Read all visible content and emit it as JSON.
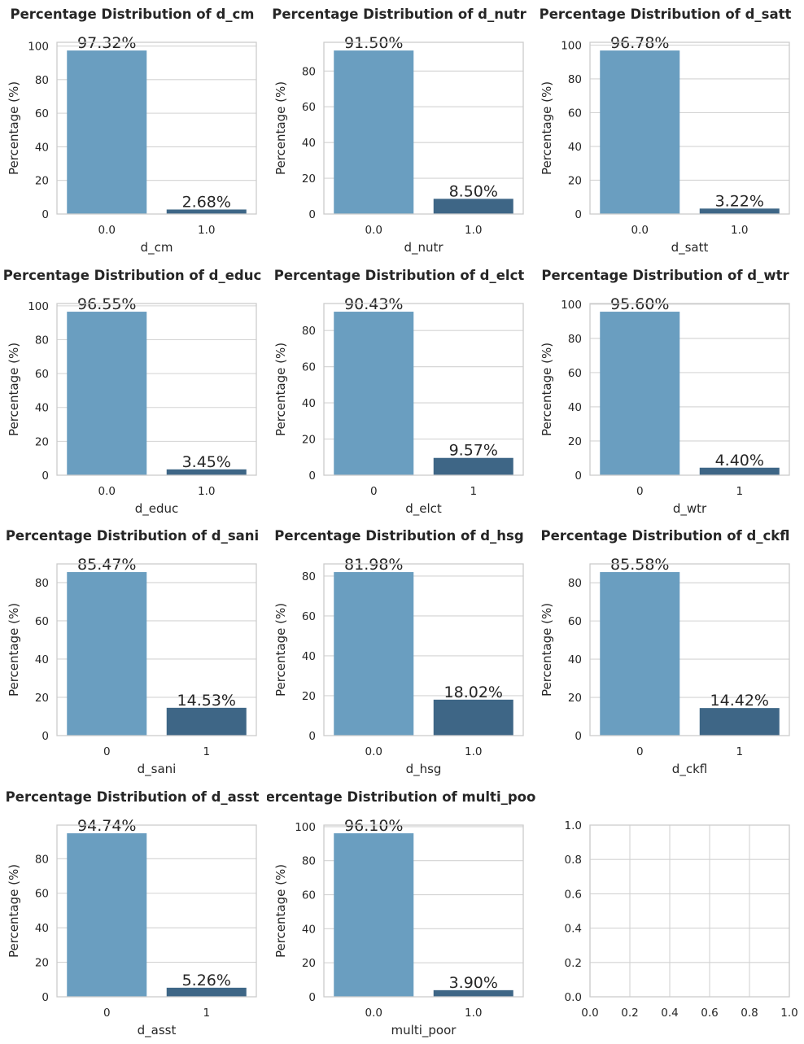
{
  "colors": {
    "bar_zero": "#6a9ec0",
    "bar_one": "#3e6686",
    "grid": "#d3d3d3",
    "spine": "#cccccc",
    "text": "#262626"
  },
  "chart_data": [
    {
      "type": "bar",
      "title": "Percentage Distribution of d_cm",
      "xlabel": "d_cm",
      "ylabel": "Percentage (%)",
      "categories": [
        "0.0",
        "1.0"
      ],
      "values": [
        97.32,
        2.68
      ],
      "data_labels": [
        "97.32%",
        "2.68%"
      ],
      "ylim": [
        0,
        102.19
      ],
      "yticks": [
        "0",
        "20",
        "40",
        "60",
        "80",
        "100"
      ],
      "grid": true
    },
    {
      "type": "bar",
      "title": "Percentage Distribution of d_nutr",
      "xlabel": "d_nutr",
      "ylabel": "Percentage (%)",
      "categories": [
        "0.0",
        "1.0"
      ],
      "values": [
        91.5,
        8.5
      ],
      "data_labels": [
        "91.50%",
        "8.50%"
      ],
      "ylim": [
        0,
        96.08
      ],
      "yticks": [
        "0",
        "20",
        "40",
        "60",
        "80"
      ],
      "grid": true
    },
    {
      "type": "bar",
      "title": "Percentage Distribution of d_satt",
      "xlabel": "d_satt",
      "ylabel": "Percentage (%)",
      "categories": [
        "0.0",
        "1.0"
      ],
      "values": [
        96.78,
        3.22
      ],
      "data_labels": [
        "96.78%",
        "3.22%"
      ],
      "ylim": [
        0,
        101.62
      ],
      "yticks": [
        "0",
        "20",
        "40",
        "60",
        "80",
        "100"
      ],
      "grid": true
    },
    {
      "type": "bar",
      "title": "Percentage Distribution of d_educ",
      "xlabel": "d_educ",
      "ylabel": "Percentage (%)",
      "categories": [
        "0.0",
        "1.0"
      ],
      "values": [
        96.55,
        3.45
      ],
      "data_labels": [
        "96.55%",
        "3.45%"
      ],
      "ylim": [
        0,
        101.38
      ],
      "yticks": [
        "0",
        "20",
        "40",
        "60",
        "80",
        "100"
      ],
      "grid": true
    },
    {
      "type": "bar",
      "title": "Percentage Distribution of d_elct",
      "xlabel": "d_elct",
      "ylabel": "Percentage (%)",
      "categories": [
        "0",
        "1"
      ],
      "values": [
        90.43,
        9.57
      ],
      "data_labels": [
        "90.43%",
        "9.57%"
      ],
      "ylim": [
        0,
        94.95
      ],
      "yticks": [
        "0",
        "20",
        "40",
        "60",
        "80"
      ],
      "grid": true
    },
    {
      "type": "bar",
      "title": "Percentage Distribution of d_wtr",
      "xlabel": "d_wtr",
      "ylabel": "Percentage (%)",
      "categories": [
        "0",
        "1"
      ],
      "values": [
        95.6,
        4.4
      ],
      "data_labels": [
        "95.60%",
        "4.40%"
      ],
      "ylim": [
        0,
        100.38
      ],
      "yticks": [
        "0",
        "20",
        "40",
        "60",
        "80",
        "100"
      ],
      "grid": true
    },
    {
      "type": "bar",
      "title": "Percentage Distribution of d_sani",
      "xlabel": "d_sani",
      "ylabel": "Percentage (%)",
      "categories": [
        "0",
        "1"
      ],
      "values": [
        85.47,
        14.53
      ],
      "data_labels": [
        "85.47%",
        "14.53%"
      ],
      "ylim": [
        0,
        89.74
      ],
      "yticks": [
        "0",
        "20",
        "40",
        "60",
        "80"
      ],
      "grid": true
    },
    {
      "type": "bar",
      "title": "Percentage Distribution of d_hsg",
      "xlabel": "d_hsg",
      "ylabel": "Percentage (%)",
      "categories": [
        "0.0",
        "1.0"
      ],
      "values": [
        81.98,
        18.02
      ],
      "data_labels": [
        "81.98%",
        "18.02%"
      ],
      "ylim": [
        0,
        86.08
      ],
      "yticks": [
        "0",
        "20",
        "40",
        "60",
        "80"
      ],
      "grid": true
    },
    {
      "type": "bar",
      "title": "Percentage Distribution of d_ckfl",
      "xlabel": "d_ckfl",
      "ylabel": "Percentage (%)",
      "categories": [
        "0",
        "1"
      ],
      "values": [
        85.58,
        14.42
      ],
      "data_labels": [
        "85.58%",
        "14.42%"
      ],
      "ylim": [
        0,
        89.86
      ],
      "yticks": [
        "0",
        "20",
        "40",
        "60",
        "80"
      ],
      "grid": true
    },
    {
      "type": "bar",
      "title": "Percentage Distribution of d_asst",
      "xlabel": "d_asst",
      "ylabel": "Percentage (%)",
      "categories": [
        "0",
        "1"
      ],
      "values": [
        94.74,
        5.26
      ],
      "data_labels": [
        "94.74%",
        "5.26%"
      ],
      "ylim": [
        0,
        99.48
      ],
      "yticks": [
        "0",
        "20",
        "40",
        "60",
        "80"
      ],
      "grid": true
    },
    {
      "type": "bar",
      "title": "Percentage Distribution of multi_poor",
      "xlabel": "multi_poor",
      "ylabel": "Percentage (%)",
      "categories": [
        "0.0",
        "1.0"
      ],
      "values": [
        96.1,
        3.9
      ],
      "data_labels": [
        "96.10%",
        "3.90%"
      ],
      "ylim": [
        0,
        100.91
      ],
      "yticks": [
        "0",
        "20",
        "40",
        "60",
        "80",
        "100"
      ],
      "grid": true
    },
    {
      "type": "empty",
      "title": "",
      "xlabel": "",
      "ylabel": "",
      "xlim": [
        0,
        1
      ],
      "ylim": [
        0,
        1
      ],
      "xticks": [
        "0.0",
        "0.2",
        "0.4",
        "0.6",
        "0.8",
        "1.0"
      ],
      "yticks": [
        "0.0",
        "0.2",
        "0.4",
        "0.6",
        "0.8",
        "1.0"
      ],
      "grid": true
    }
  ]
}
